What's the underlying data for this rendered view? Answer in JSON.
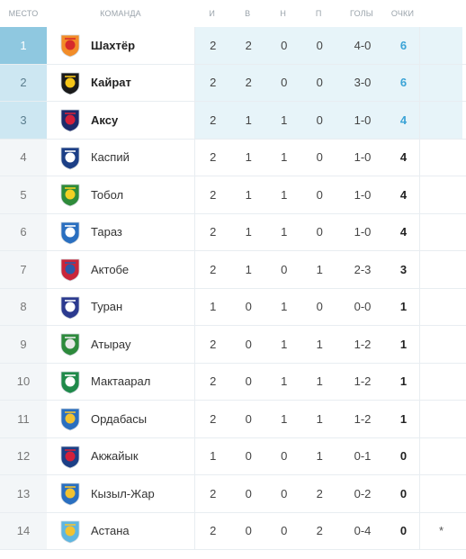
{
  "headers": {
    "pos": "МЕСТО",
    "team": "КОМАНДА",
    "played": "И",
    "won": "В",
    "drawn": "Н",
    "lost": "П",
    "goals": "ГОЛЫ",
    "points": "ОЧКИ"
  },
  "rows": [
    {
      "pos": "1",
      "team": "Шахтёр",
      "played": "2",
      "won": "2",
      "drawn": "0",
      "lost": "0",
      "goals": "4-0",
      "points": "6",
      "note": "",
      "logo": "shakhter-logo",
      "colors": [
        "#f28c28",
        "#d62b2b"
      ]
    },
    {
      "pos": "2",
      "team": "Кайрат",
      "played": "2",
      "won": "2",
      "drawn": "0",
      "lost": "0",
      "goals": "3-0",
      "points": "6",
      "note": "",
      "logo": "kairat-logo",
      "colors": [
        "#1a1a1a",
        "#f5c518"
      ]
    },
    {
      "pos": "3",
      "team": "Аксу",
      "played": "2",
      "won": "1",
      "drawn": "1",
      "lost": "0",
      "goals": "1-0",
      "points": "4",
      "note": "",
      "logo": "aksu-logo",
      "colors": [
        "#1c2a6b",
        "#d3203a"
      ]
    },
    {
      "pos": "4",
      "team": "Каспий",
      "played": "2",
      "won": "1",
      "drawn": "1",
      "lost": "0",
      "goals": "1-0",
      "points": "4",
      "note": "",
      "logo": "kaspiy-logo",
      "colors": [
        "#1c3f86",
        "#ffffff"
      ]
    },
    {
      "pos": "5",
      "team": "Тобол",
      "played": "2",
      "won": "1",
      "drawn": "1",
      "lost": "0",
      "goals": "1-0",
      "points": "4",
      "note": "",
      "logo": "tobol-logo",
      "colors": [
        "#2e8b3a",
        "#f2d024"
      ]
    },
    {
      "pos": "6",
      "team": "Тараз",
      "played": "2",
      "won": "1",
      "drawn": "1",
      "lost": "0",
      "goals": "1-0",
      "points": "4",
      "note": "",
      "logo": "taraz-logo",
      "colors": [
        "#2a6fc0",
        "#ffffff"
      ]
    },
    {
      "pos": "7",
      "team": "Актобе",
      "played": "2",
      "won": "1",
      "drawn": "0",
      "lost": "1",
      "goals": "2-3",
      "points": "3",
      "note": "",
      "logo": "aktobe-logo",
      "colors": [
        "#c8253a",
        "#2a5aa8"
      ]
    },
    {
      "pos": "8",
      "team": "Туран",
      "played": "1",
      "won": "0",
      "drawn": "1",
      "lost": "0",
      "goals": "0-0",
      "points": "1",
      "note": "",
      "logo": "turan-logo",
      "colors": [
        "#2b3a8f",
        "#ffffff"
      ]
    },
    {
      "pos": "9",
      "team": "Атырау",
      "played": "2",
      "won": "0",
      "drawn": "1",
      "lost": "1",
      "goals": "1-2",
      "points": "1",
      "note": "",
      "logo": "atyrau-logo",
      "colors": [
        "#2d8a3c",
        "#e8e8e8"
      ]
    },
    {
      "pos": "10",
      "team": "Мактаарал",
      "played": "2",
      "won": "0",
      "drawn": "1",
      "lost": "1",
      "goals": "1-2",
      "points": "1",
      "note": "",
      "logo": "maktaaral-logo",
      "colors": [
        "#1f8a4a",
        "#ffffff"
      ]
    },
    {
      "pos": "11",
      "team": "Ордабасы",
      "played": "2",
      "won": "0",
      "drawn": "1",
      "lost": "1",
      "goals": "1-2",
      "points": "1",
      "note": "",
      "logo": "ordabasy-logo",
      "colors": [
        "#2a6fc0",
        "#f2c230"
      ]
    },
    {
      "pos": "12",
      "team": "Акжайык",
      "played": "1",
      "won": "0",
      "drawn": "0",
      "lost": "1",
      "goals": "0-1",
      "points": "0",
      "note": "",
      "logo": "akzhaiyk-logo",
      "colors": [
        "#1c3f86",
        "#d3203a"
      ]
    },
    {
      "pos": "13",
      "team": "Кызыл-Жар",
      "played": "2",
      "won": "0",
      "drawn": "0",
      "lost": "2",
      "goals": "0-2",
      "points": "0",
      "note": "",
      "logo": "kyzylzhar-logo",
      "colors": [
        "#2a6fc0",
        "#f2c230"
      ]
    },
    {
      "pos": "14",
      "team": "Астана",
      "played": "2",
      "won": "0",
      "drawn": "0",
      "lost": "2",
      "goals": "0-4",
      "points": "0",
      "note": "*",
      "logo": "astana-logo",
      "colors": [
        "#5fb6e0",
        "#f2c230"
      ]
    }
  ]
}
